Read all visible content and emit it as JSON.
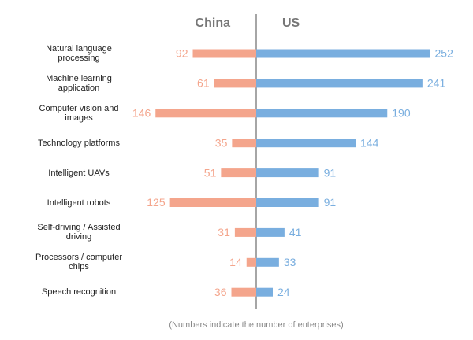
{
  "chart_data": {
    "type": "butterfly",
    "categories": [
      "Natural language processing",
      "Machine learning application",
      "Computer vision and images",
      "Technology platforms",
      "Intelligent UAVs",
      "Intelligent robots",
      "Self-driving / Assisted driving",
      "Processors / computer chips",
      "Speech recognition"
    ],
    "series": [
      {
        "name": "China",
        "color": "#f4a58c",
        "values": [
          92,
          61,
          146,
          35,
          51,
          125,
          31,
          14,
          36
        ]
      },
      {
        "name": "US",
        "color": "#79aedf",
        "values": [
          252,
          241,
          190,
          144,
          91,
          91,
          41,
          33,
          24
        ]
      }
    ],
    "note": "(Numbers indicate the number of enterprises)"
  }
}
